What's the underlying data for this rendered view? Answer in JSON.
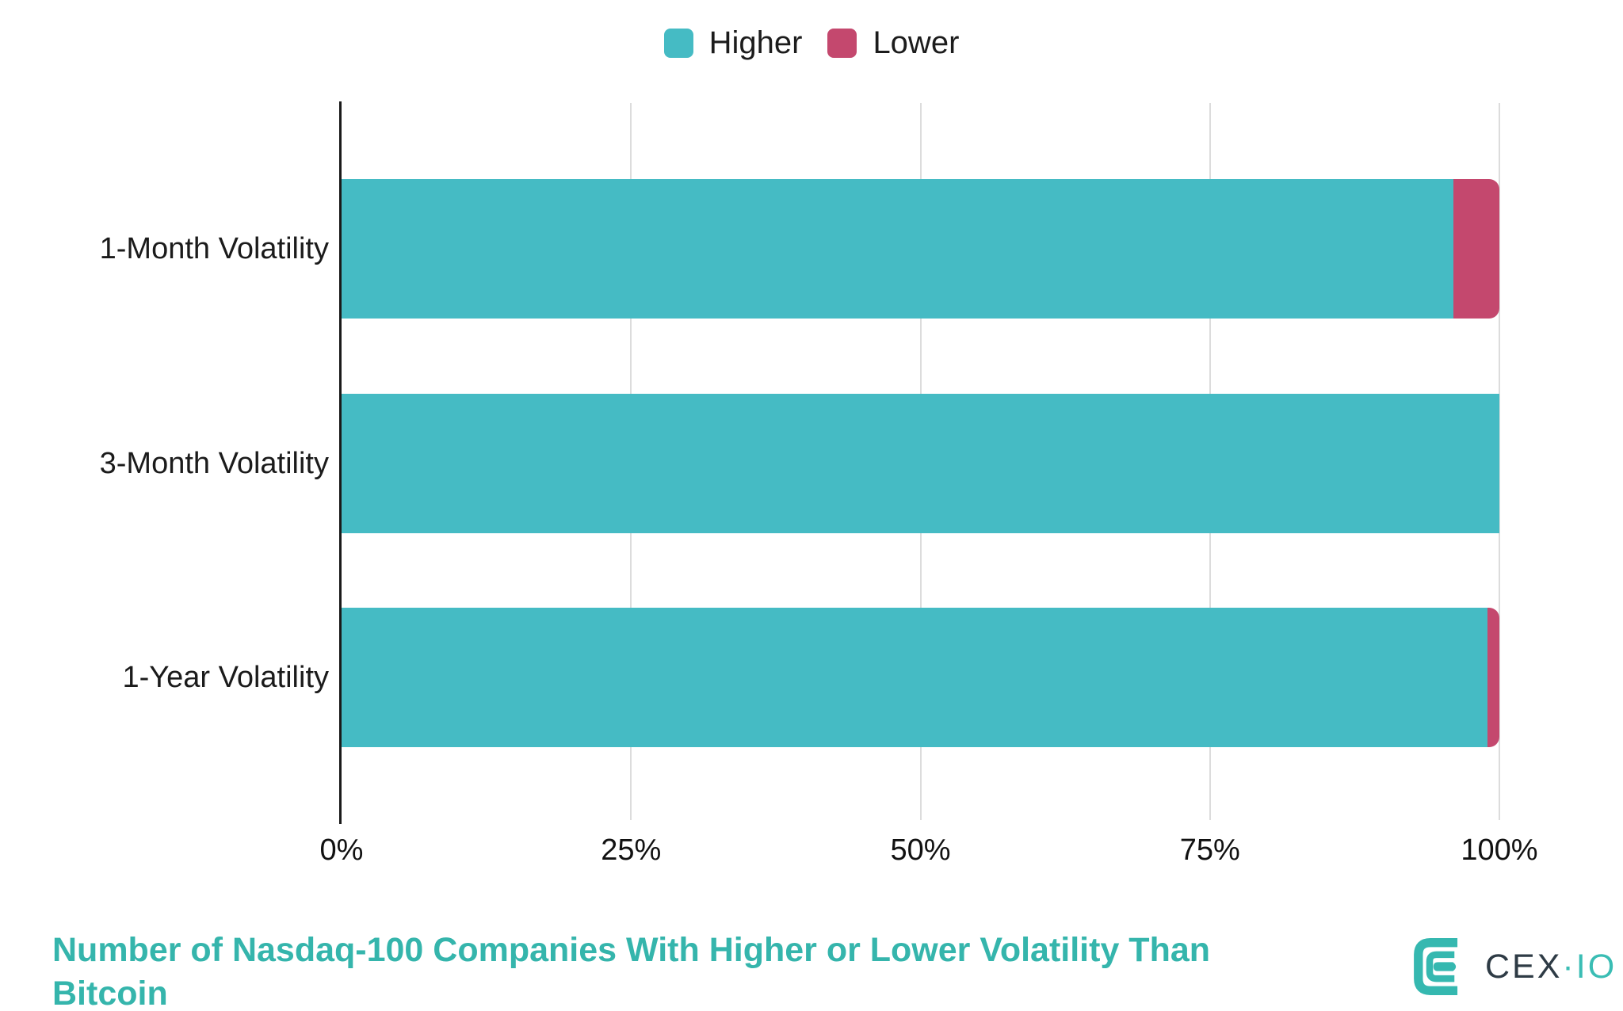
{
  "chart_data": {
    "type": "bar",
    "orientation": "horizontal",
    "stacked": true,
    "normalized": "percent",
    "title": "Number of Nasdaq-100 Companies With Higher or Lower Volatility Than Bitcoin",
    "categories": [
      "1-Month Volatility",
      "3-Month Volatility",
      "1-Year Volatility"
    ],
    "series": [
      {
        "name": "Higher",
        "color": "#45BBC4",
        "values": [
          96,
          100,
          99
        ]
      },
      {
        "name": "Lower",
        "color": "#C4486E",
        "values": [
          4,
          0,
          1
        ]
      }
    ],
    "x_axis": {
      "min": 0,
      "max": 100,
      "tick_values": [
        0,
        25,
        50,
        75,
        100
      ],
      "tick_labels": [
        "0%",
        "25%",
        "50%",
        "75%",
        "100%"
      ],
      "grid": true
    },
    "legend": {
      "position": "top-center",
      "entries": [
        "Higher",
        "Lower"
      ]
    },
    "colors": {
      "higher": "#45BBC4",
      "lower": "#C4486E",
      "title": "#35B5AC",
      "gridline": "#DCDCDC",
      "axis": "#1A1A1A"
    }
  },
  "logo": {
    "brand_prefix": "CEX",
    "brand_suffix": "·IO",
    "icon": "cexio-concentric-c-mark",
    "icon_color": "#35B8B0",
    "text_color_prefix": "#2E3B45",
    "text_color_suffix": "#3ABDB4"
  }
}
